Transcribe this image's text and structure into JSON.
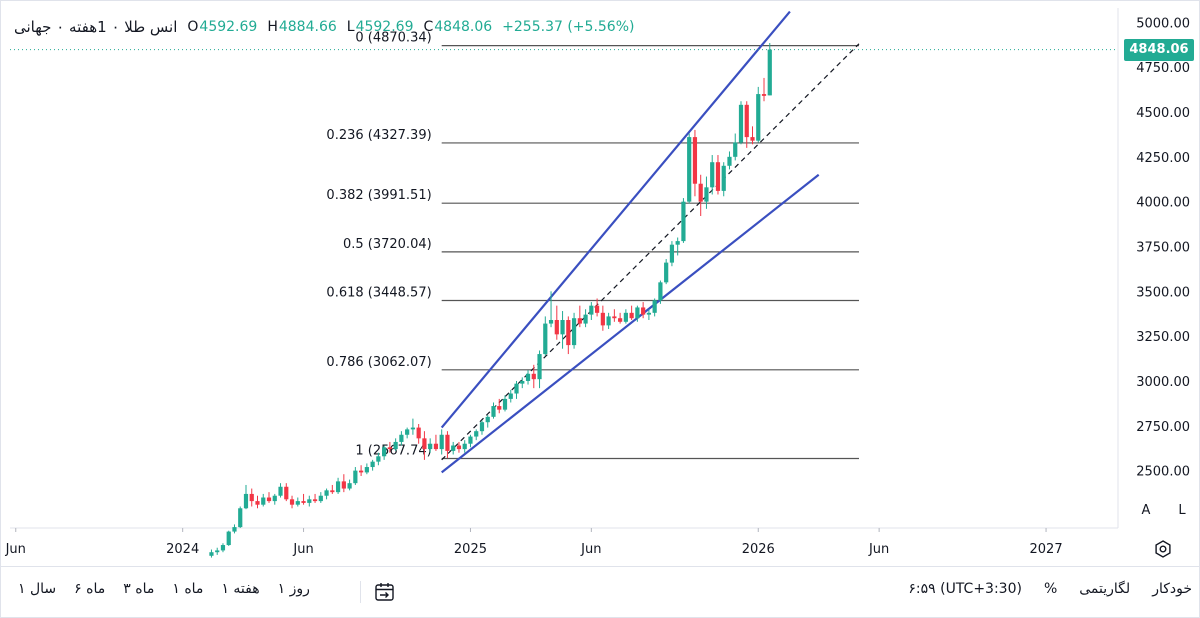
{
  "header": {
    "symbol_title": "انس طلا ۰ 1هفته ۰ جهانی",
    "open_key": "O",
    "open": "4592.69",
    "high_key": "H",
    "high": "4884.66",
    "low_key": "L",
    "low": "4592.69",
    "close_key": "C",
    "close": "4848.06",
    "change": "+255.37 (+5.56%)"
  },
  "price_badge": "4848.06",
  "scale_buttons": {
    "auto": "A",
    "log": "L"
  },
  "bottom_toolbar": {
    "ranges": [
      "روز ۱",
      "هفته ۱",
      "ماه ۱",
      "ماه ۳",
      "ماه ۶",
      "سال ۱"
    ],
    "time": "۶:۵۹ (UTC+3:30)",
    "percent": "%",
    "logarithmic": "لگاریتمی",
    "auto": "خودکار"
  },
  "colors": {
    "up": "#22ab94",
    "down": "#f23645",
    "trendline": "#3a4fc0",
    "fib": "#555555"
  },
  "icons": {
    "calendar": "calendar-goto-icon",
    "settings": "gear-icon"
  },
  "chart_data": {
    "type": "candlestick",
    "timeframe": "1W",
    "title": "",
    "xlabel": "",
    "ylabel": "",
    "ylim": [
      2180,
      5080
    ],
    "y_ticks": [
      "5000.00",
      "4750.00",
      "4500.00",
      "4250.00",
      "4000.00",
      "3750.00",
      "3500.00",
      "3250.00",
      "3000.00",
      "2750.00",
      "2500.00"
    ],
    "x_ticks": [
      "Jun",
      "2024",
      "Jun",
      "2025",
      "Jun",
      "2026",
      "Jun",
      "2027"
    ],
    "x_tick_dates": [
      2023.42,
      2024.0,
      2024.42,
      2025.0,
      2025.42,
      2026.0,
      2026.42,
      2027.0
    ],
    "xlim": [
      2023.4,
      2027.25
    ],
    "last_price": 4848.06,
    "fib_levels": [
      {
        "label": "0 (4870.34)",
        "value": 4870.34
      },
      {
        "label": "0.236 (4327.39)",
        "value": 4327.39
      },
      {
        "label": "0.382 (3991.51)",
        "value": 3991.51
      },
      {
        "label": "0.5 (3720.04)",
        "value": 3720.04
      },
      {
        "label": "0.618 (3448.57)",
        "value": 3448.57
      },
      {
        "label": "0.786 (3062.07)",
        "value": 3062.07
      },
      {
        "label": "1 (2567.74)",
        "value": 2567.74
      }
    ],
    "fib_range": [
      2024.9,
      2026.35
    ],
    "trendlines": [
      {
        "name": "upper-channel",
        "style": "solid",
        "from": [
          2024.9,
          2740
        ],
        "to": [
          2026.11,
          5060
        ]
      },
      {
        "name": "lower-channel",
        "style": "solid",
        "from": [
          2024.9,
          2490
        ],
        "to": [
          2026.21,
          4150
        ]
      },
      {
        "name": "mid-line",
        "style": "dashed",
        "from": [
          2024.9,
          2560
        ],
        "to": [
          2026.35,
          4880
        ]
      }
    ],
    "candles": [
      {
        "t": 2024.1,
        "o": 2025,
        "h": 2060,
        "l": 2015,
        "c": 2045
      },
      {
        "t": 2024.12,
        "o": 2045,
        "h": 2070,
        "l": 2030,
        "c": 2055
      },
      {
        "t": 2024.14,
        "o": 2055,
        "h": 2095,
        "l": 2045,
        "c": 2085
      },
      {
        "t": 2024.16,
        "o": 2085,
        "h": 2165,
        "l": 2080,
        "c": 2160
      },
      {
        "t": 2024.18,
        "o": 2160,
        "h": 2200,
        "l": 2150,
        "c": 2185
      },
      {
        "t": 2024.2,
        "o": 2185,
        "h": 2300,
        "l": 2180,
        "c": 2290
      },
      {
        "t": 2024.22,
        "o": 2290,
        "h": 2420,
        "l": 2285,
        "c": 2370
      },
      {
        "t": 2024.24,
        "o": 2370,
        "h": 2400,
        "l": 2300,
        "c": 2330
      },
      {
        "t": 2024.26,
        "o": 2330,
        "h": 2360,
        "l": 2290,
        "c": 2310
      },
      {
        "t": 2024.28,
        "o": 2310,
        "h": 2370,
        "l": 2300,
        "c": 2350
      },
      {
        "t": 2024.3,
        "o": 2350,
        "h": 2380,
        "l": 2320,
        "c": 2330
      },
      {
        "t": 2024.32,
        "o": 2330,
        "h": 2370,
        "l": 2310,
        "c": 2360
      },
      {
        "t": 2024.34,
        "o": 2360,
        "h": 2430,
        "l": 2350,
        "c": 2410
      },
      {
        "t": 2024.36,
        "o": 2410,
        "h": 2430,
        "l": 2330,
        "c": 2340
      },
      {
        "t": 2024.38,
        "o": 2340,
        "h": 2360,
        "l": 2290,
        "c": 2310
      },
      {
        "t": 2024.4,
        "o": 2310,
        "h": 2350,
        "l": 2300,
        "c": 2330
      },
      {
        "t": 2024.42,
        "o": 2330,
        "h": 2370,
        "l": 2310,
        "c": 2320
      },
      {
        "t": 2024.44,
        "o": 2320,
        "h": 2360,
        "l": 2300,
        "c": 2340
      },
      {
        "t": 2024.46,
        "o": 2340,
        "h": 2370,
        "l": 2320,
        "c": 2330
      },
      {
        "t": 2024.48,
        "o": 2330,
        "h": 2380,
        "l": 2320,
        "c": 2360
      },
      {
        "t": 2024.5,
        "o": 2360,
        "h": 2400,
        "l": 2340,
        "c": 2390
      },
      {
        "t": 2024.52,
        "o": 2390,
        "h": 2420,
        "l": 2370,
        "c": 2380
      },
      {
        "t": 2024.54,
        "o": 2380,
        "h": 2460,
        "l": 2370,
        "c": 2440
      },
      {
        "t": 2024.56,
        "o": 2440,
        "h": 2480,
        "l": 2380,
        "c": 2400
      },
      {
        "t": 2024.58,
        "o": 2400,
        "h": 2450,
        "l": 2390,
        "c": 2430
      },
      {
        "t": 2024.6,
        "o": 2430,
        "h": 2520,
        "l": 2420,
        "c": 2500
      },
      {
        "t": 2024.62,
        "o": 2500,
        "h": 2530,
        "l": 2470,
        "c": 2490
      },
      {
        "t": 2024.64,
        "o": 2490,
        "h": 2540,
        "l": 2480,
        "c": 2520
      },
      {
        "t": 2024.66,
        "o": 2520,
        "h": 2560,
        "l": 2500,
        "c": 2550
      },
      {
        "t": 2024.68,
        "o": 2550,
        "h": 2600,
        "l": 2530,
        "c": 2580
      },
      {
        "t": 2024.7,
        "o": 2580,
        "h": 2640,
        "l": 2560,
        "c": 2630
      },
      {
        "t": 2024.72,
        "o": 2630,
        "h": 2660,
        "l": 2600,
        "c": 2620
      },
      {
        "t": 2024.74,
        "o": 2620,
        "h": 2680,
        "l": 2610,
        "c": 2660
      },
      {
        "t": 2024.76,
        "o": 2660,
        "h": 2720,
        "l": 2640,
        "c": 2700
      },
      {
        "t": 2024.78,
        "o": 2700,
        "h": 2740,
        "l": 2680,
        "c": 2730
      },
      {
        "t": 2024.8,
        "o": 2730,
        "h": 2790,
        "l": 2700,
        "c": 2740
      },
      {
        "t": 2024.82,
        "o": 2740,
        "h": 2760,
        "l": 2650,
        "c": 2680
      },
      {
        "t": 2024.84,
        "o": 2680,
        "h": 2720,
        "l": 2560,
        "c": 2620
      },
      {
        "t": 2024.86,
        "o": 2620,
        "h": 2680,
        "l": 2600,
        "c": 2650
      },
      {
        "t": 2024.88,
        "o": 2650,
        "h": 2700,
        "l": 2610,
        "c": 2620
      },
      {
        "t": 2024.9,
        "o": 2620,
        "h": 2730,
        "l": 2590,
        "c": 2700
      },
      {
        "t": 2024.92,
        "o": 2700,
        "h": 2720,
        "l": 2570,
        "c": 2610
      },
      {
        "t": 2024.94,
        "o": 2610,
        "h": 2660,
        "l": 2590,
        "c": 2640
      },
      {
        "t": 2024.96,
        "o": 2640,
        "h": 2660,
        "l": 2600,
        "c": 2620
      },
      {
        "t": 2024.98,
        "o": 2620,
        "h": 2670,
        "l": 2600,
        "c": 2650
      },
      {
        "t": 2025.0,
        "o": 2650,
        "h": 2700,
        "l": 2630,
        "c": 2690
      },
      {
        "t": 2025.02,
        "o": 2690,
        "h": 2730,
        "l": 2670,
        "c": 2720
      },
      {
        "t": 2025.04,
        "o": 2720,
        "h": 2780,
        "l": 2700,
        "c": 2770
      },
      {
        "t": 2025.06,
        "o": 2770,
        "h": 2810,
        "l": 2740,
        "c": 2800
      },
      {
        "t": 2025.08,
        "o": 2800,
        "h": 2880,
        "l": 2790,
        "c": 2860
      },
      {
        "t": 2025.1,
        "o": 2860,
        "h": 2900,
        "l": 2820,
        "c": 2840
      },
      {
        "t": 2025.12,
        "o": 2840,
        "h": 2920,
        "l": 2830,
        "c": 2900
      },
      {
        "t": 2025.14,
        "o": 2900,
        "h": 2950,
        "l": 2880,
        "c": 2930
      },
      {
        "t": 2025.16,
        "o": 2930,
        "h": 3000,
        "l": 2900,
        "c": 2985
      },
      {
        "t": 2025.18,
        "o": 2985,
        "h": 3020,
        "l": 2960,
        "c": 3000
      },
      {
        "t": 2025.2,
        "o": 3000,
        "h": 3060,
        "l": 2980,
        "c": 3040
      },
      {
        "t": 2025.22,
        "o": 3040,
        "h": 3090,
        "l": 2960,
        "c": 3010
      },
      {
        "t": 2025.24,
        "o": 3010,
        "h": 3170,
        "l": 2960,
        "c": 3150
      },
      {
        "t": 2025.26,
        "o": 3150,
        "h": 3360,
        "l": 3140,
        "c": 3320
      },
      {
        "t": 2025.28,
        "o": 3320,
        "h": 3500,
        "l": 3300,
        "c": 3340
      },
      {
        "t": 2025.3,
        "o": 3340,
        "h": 3420,
        "l": 3230,
        "c": 3260
      },
      {
        "t": 2025.32,
        "o": 3260,
        "h": 3390,
        "l": 3180,
        "c": 3340
      },
      {
        "t": 2025.34,
        "o": 3340,
        "h": 3360,
        "l": 3150,
        "c": 3200
      },
      {
        "t": 2025.36,
        "o": 3200,
        "h": 3380,
        "l": 3180,
        "c": 3350
      },
      {
        "t": 2025.38,
        "o": 3350,
        "h": 3420,
        "l": 3300,
        "c": 3320
      },
      {
        "t": 2025.4,
        "o": 3320,
        "h": 3400,
        "l": 3300,
        "c": 3370
      },
      {
        "t": 2025.42,
        "o": 3370,
        "h": 3440,
        "l": 3340,
        "c": 3420
      },
      {
        "t": 2025.44,
        "o": 3420,
        "h": 3460,
        "l": 3360,
        "c": 3380
      },
      {
        "t": 2025.46,
        "o": 3380,
        "h": 3420,
        "l": 3280,
        "c": 3310
      },
      {
        "t": 2025.48,
        "o": 3310,
        "h": 3380,
        "l": 3290,
        "c": 3360
      },
      {
        "t": 2025.5,
        "o": 3360,
        "h": 3400,
        "l": 3330,
        "c": 3350
      },
      {
        "t": 2025.52,
        "o": 3350,
        "h": 3380,
        "l": 3320,
        "c": 3330
      },
      {
        "t": 2025.54,
        "o": 3330,
        "h": 3400,
        "l": 3320,
        "c": 3380
      },
      {
        "t": 2025.56,
        "o": 3380,
        "h": 3420,
        "l": 3340,
        "c": 3350
      },
      {
        "t": 2025.58,
        "o": 3350,
        "h": 3420,
        "l": 3330,
        "c": 3410
      },
      {
        "t": 2025.6,
        "o": 3410,
        "h": 3440,
        "l": 3350,
        "c": 3370
      },
      {
        "t": 2025.62,
        "o": 3370,
        "h": 3400,
        "l": 3340,
        "c": 3380
      },
      {
        "t": 2025.64,
        "o": 3380,
        "h": 3460,
        "l": 3360,
        "c": 3450
      },
      {
        "t": 2025.66,
        "o": 3450,
        "h": 3560,
        "l": 3430,
        "c": 3550
      },
      {
        "t": 2025.68,
        "o": 3550,
        "h": 3680,
        "l": 3540,
        "c": 3660
      },
      {
        "t": 2025.7,
        "o": 3660,
        "h": 3780,
        "l": 3640,
        "c": 3760
      },
      {
        "t": 2025.72,
        "o": 3760,
        "h": 3800,
        "l": 3700,
        "c": 3780
      },
      {
        "t": 2025.74,
        "o": 3780,
        "h": 4020,
        "l": 3770,
        "c": 4000
      },
      {
        "t": 2025.76,
        "o": 4000,
        "h": 4380,
        "l": 3990,
        "c": 4360
      },
      {
        "t": 2025.78,
        "o": 4360,
        "h": 4400,
        "l": 4030,
        "c": 4100
      },
      {
        "t": 2025.8,
        "o": 4100,
        "h": 4150,
        "l": 3920,
        "c": 4000
      },
      {
        "t": 2025.82,
        "o": 4000,
        "h": 4140,
        "l": 3960,
        "c": 4080
      },
      {
        "t": 2025.84,
        "o": 4080,
        "h": 4260,
        "l": 4040,
        "c": 4220
      },
      {
        "t": 2025.86,
        "o": 4220,
        "h": 4260,
        "l": 4040,
        "c": 4060
      },
      {
        "t": 2025.88,
        "o": 4060,
        "h": 4220,
        "l": 4030,
        "c": 4200
      },
      {
        "t": 2025.9,
        "o": 4200,
        "h": 4280,
        "l": 4180,
        "c": 4250
      },
      {
        "t": 2025.92,
        "o": 4250,
        "h": 4380,
        "l": 4230,
        "c": 4330
      },
      {
        "t": 2025.94,
        "o": 4330,
        "h": 4560,
        "l": 4320,
        "c": 4540
      },
      {
        "t": 2025.96,
        "o": 4540,
        "h": 4560,
        "l": 4300,
        "c": 4360
      },
      {
        "t": 2025.98,
        "o": 4360,
        "h": 4420,
        "l": 4320,
        "c": 4340
      },
      {
        "t": 2026.0,
        "o": 4340,
        "h": 4640,
        "l": 4330,
        "c": 4600
      },
      {
        "t": 2026.02,
        "o": 4600,
        "h": 4690,
        "l": 4560,
        "c": 4590
      },
      {
        "t": 2026.04,
        "o": 4592.69,
        "h": 4884.66,
        "l": 4592.69,
        "c": 4848.06
      }
    ]
  }
}
